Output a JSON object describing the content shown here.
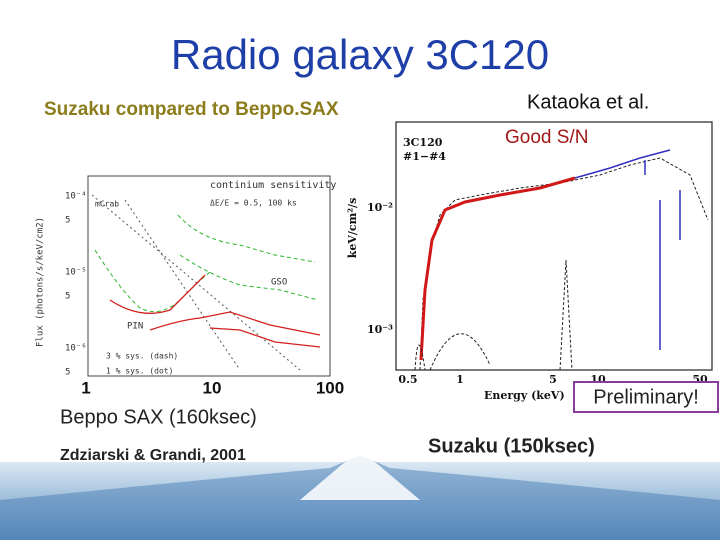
{
  "title": "Radio galaxy 3C120",
  "left": {
    "heading": "Suzaku compared to Beppo.SAX",
    "plot": {
      "title": "continium sensitivity",
      "unit_note": "mCrab",
      "resolution_note": "ΔE/E = 0.5, 100 ks",
      "y_label": "Flux (photons/s/keV/cm2)",
      "yticks": [
        "10⁻⁴",
        "5",
        "10⁻⁵",
        "5",
        "10⁻⁶",
        "5"
      ],
      "curve_labels": [
        "GSO",
        "PIN"
      ],
      "legend": [
        "3 % sys. (dash)",
        "1 % sys. (dot)"
      ],
      "xticks": [
        "1",
        "10",
        "100"
      ]
    },
    "caption": "Beppo SAX (160ksec)",
    "credit": "Zdziarski & Grandi, 2001"
  },
  "right": {
    "credit": "Kataoka et al.",
    "note": "Good S/N",
    "plot": {
      "source": "3C120",
      "observations": "#1−#4",
      "y_label": "keV/cm²/s",
      "yticks": [
        "10⁻²",
        "10⁻³"
      ],
      "xticks": [
        "0.5",
        "1",
        "5",
        "10",
        "50"
      ],
      "x_label": "Energy (keV)"
    },
    "stamp": "Preliminary!",
    "caption": "Suzaku (150ksec)"
  }
}
